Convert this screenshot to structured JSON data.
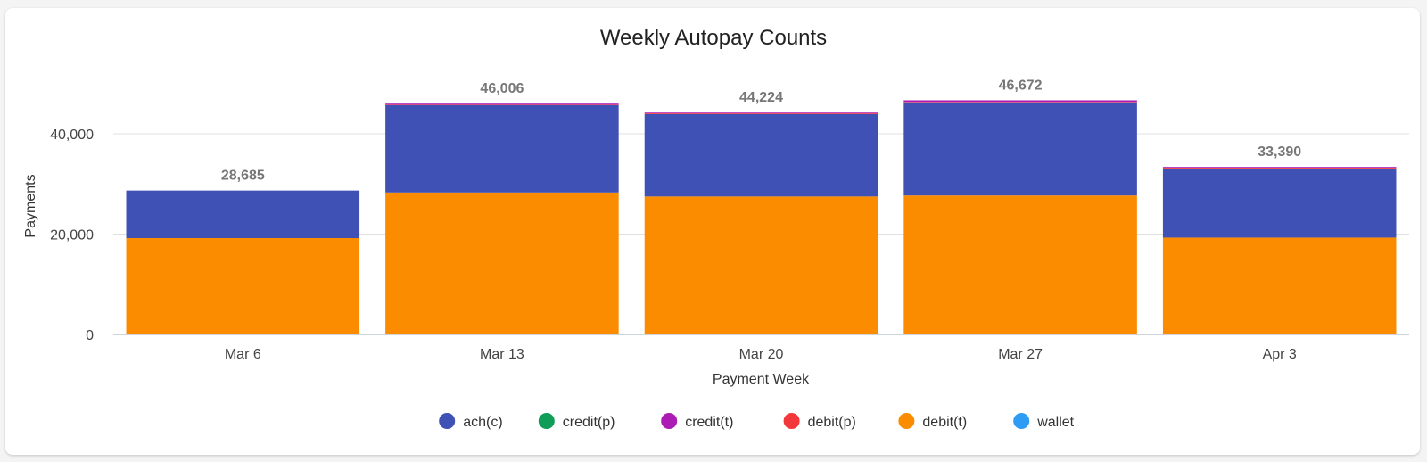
{
  "chart_data": {
    "type": "bar",
    "stacked": true,
    "title": "Weekly Autopay Counts",
    "xlabel": "Payment Week",
    "ylabel": "Payments",
    "categories": [
      "Mar 6",
      "Mar 13",
      "Mar 20",
      "Mar 27",
      "Apr 3"
    ],
    "ylim": [
      0,
      50000
    ],
    "yticks": [
      0,
      20000,
      40000
    ],
    "ytick_labels": [
      "0",
      "20,000",
      "40,000"
    ],
    "grid": true,
    "legend_position": "bottom",
    "totals": [
      28685,
      46006,
      44224,
      46672,
      33390
    ],
    "total_labels": [
      "28,685",
      "46,006",
      "44,224",
      "46,672",
      "33,390"
    ],
    "series": [
      {
        "name": "debit(t)",
        "color": "#fb8c00",
        "values": [
          19200,
          28300,
          27500,
          27700,
          19300
        ]
      },
      {
        "name": "ach(c)",
        "color": "#3f51b5",
        "values": [
          9485,
          17400,
          16424,
          18572,
          13790
        ]
      },
      {
        "name": "credit(p)",
        "color": "#0f9d58",
        "values": [
          0,
          0,
          0,
          0,
          0
        ]
      },
      {
        "name": "debit(p)",
        "color": "#f2383a",
        "values": [
          0,
          100,
          150,
          100,
          150
        ]
      },
      {
        "name": "credit(t)",
        "color": "#ab1cb4",
        "values": [
          0,
          206,
          150,
          300,
          150
        ]
      },
      {
        "name": "wallet",
        "color": "#2e9cf4",
        "values": [
          0,
          0,
          0,
          0,
          0
        ]
      }
    ],
    "legend": [
      {
        "label": "ach(c)",
        "color": "#3f51b5"
      },
      {
        "label": "credit(p)",
        "color": "#0f9d58"
      },
      {
        "label": "credit(t)",
        "color": "#ab1cb4"
      },
      {
        "label": "debit(p)",
        "color": "#f2383a"
      },
      {
        "label": "debit(t)",
        "color": "#fb8c00"
      },
      {
        "label": "wallet",
        "color": "#2e9cf4"
      }
    ]
  }
}
